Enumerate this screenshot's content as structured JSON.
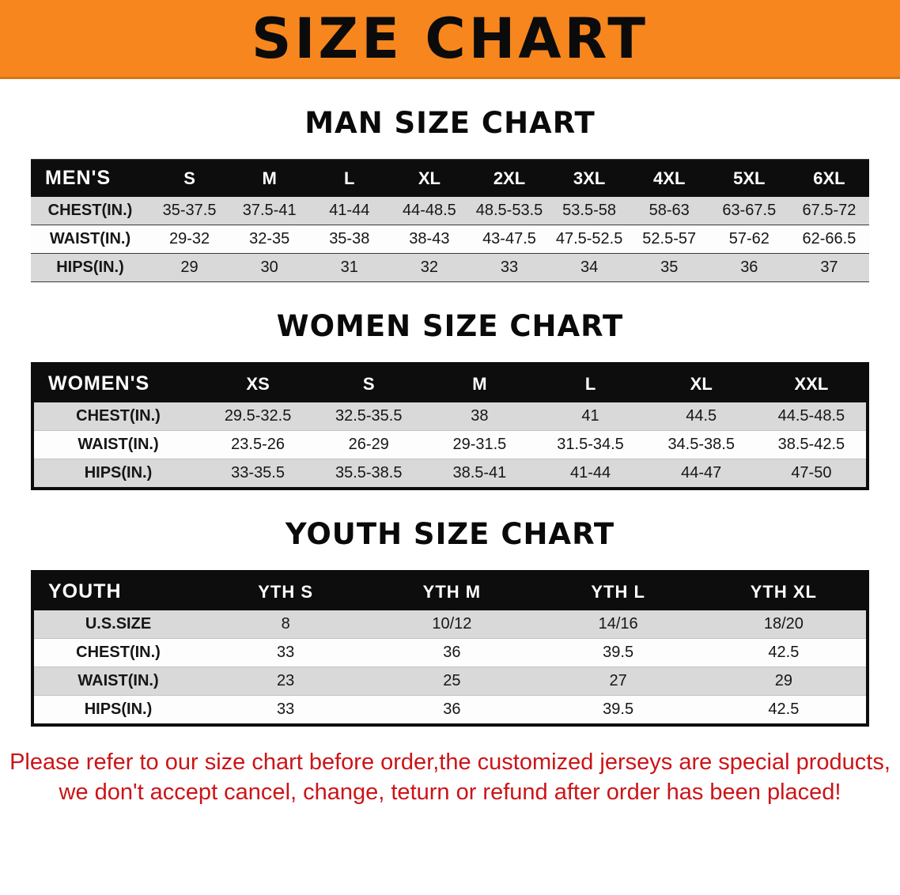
{
  "banner": {
    "title": "SIZE CHART"
  },
  "colors": {
    "banner_bg": "#f6861d",
    "header_bg": "#0d0d0d",
    "row_alt_bg": "#d9d9d9",
    "notice_red": "#cc1417"
  },
  "chart_data": [
    {
      "type": "table",
      "title": "MAN SIZE CHART",
      "columns": [
        "MEN'S",
        "S",
        "M",
        "L",
        "XL",
        "2XL",
        "3XL",
        "4XL",
        "5XL",
        "6XL"
      ],
      "rows": [
        [
          "CHEST(IN.)",
          "35-37.5",
          "37.5-41",
          "41-44",
          "44-48.5",
          "48.5-53.5",
          "53.5-58",
          "58-63",
          "63-67.5",
          "67.5-72"
        ],
        [
          "WAIST(IN.)",
          "29-32",
          "32-35",
          "35-38",
          "38-43",
          "43-47.5",
          "47.5-52.5",
          "52.5-57",
          "57-62",
          "62-66.5"
        ],
        [
          "HIPS(IN.)",
          "29",
          "30",
          "31",
          "32",
          "33",
          "34",
          "35",
          "36",
          "37"
        ]
      ]
    },
    {
      "type": "table",
      "title": "WOMEN SIZE CHART",
      "columns": [
        "WOMEN'S",
        "XS",
        "S",
        "M",
        "L",
        "XL",
        "XXL"
      ],
      "rows": [
        [
          "CHEST(IN.)",
          "29.5-32.5",
          "32.5-35.5",
          "38",
          "41",
          "44.5",
          "44.5-48.5"
        ],
        [
          "WAIST(IN.)",
          "23.5-26",
          "26-29",
          "29-31.5",
          "31.5-34.5",
          "34.5-38.5",
          "38.5-42.5"
        ],
        [
          "HIPS(IN.)",
          "33-35.5",
          "35.5-38.5",
          "38.5-41",
          "41-44",
          "44-47",
          "47-50"
        ]
      ]
    },
    {
      "type": "table",
      "title": "YOUTH SIZE CHART",
      "columns": [
        "YOUTH",
        "YTH S",
        "YTH M",
        "YTH L",
        "YTH XL"
      ],
      "rows": [
        [
          "U.S.SIZE",
          "8",
          "10/12",
          "14/16",
          "18/20"
        ],
        [
          "CHEST(IN.)",
          "33",
          "36",
          "39.5",
          "42.5"
        ],
        [
          "WAIST(IN.)",
          "23",
          "25",
          "27",
          "29"
        ],
        [
          "HIPS(IN.)",
          "33",
          "36",
          "39.5",
          "42.5"
        ]
      ]
    }
  ],
  "footer": {
    "lines": [
      "Please refer to our size chart before order,the customized jerseys are special products,",
      "we don't accept cancel, change, teturn or refund after order has been placed!"
    ]
  }
}
